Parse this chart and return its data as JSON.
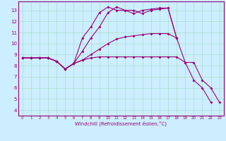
{
  "xlabel": "Windchill (Refroidissement éolien,°C)",
  "bg_color": "#cceeff",
  "grid_color": "#aaddcc",
  "line_color": "#990077",
  "xlim": [
    -0.5,
    23.5
  ],
  "ylim": [
    3.5,
    13.8
  ],
  "xticks": [
    0,
    1,
    2,
    3,
    4,
    5,
    6,
    7,
    8,
    9,
    10,
    11,
    12,
    13,
    14,
    15,
    16,
    17,
    18,
    19,
    20,
    21,
    22,
    23
  ],
  "yticks": [
    4,
    5,
    6,
    7,
    8,
    9,
    10,
    11,
    12,
    13
  ],
  "series": [
    {
      "x": [
        0,
        1,
        2,
        3,
        4,
        5,
        6,
        7,
        8,
        9,
        10,
        11,
        12,
        13,
        14,
        15,
        16,
        17,
        18,
        19,
        20,
        21,
        22,
        23
      ],
      "y": [
        8.7,
        8.7,
        8.7,
        8.7,
        8.4,
        7.7,
        8.2,
        8.5,
        8.7,
        8.8,
        8.8,
        8.8,
        8.8,
        8.8,
        8.8,
        8.8,
        8.8,
        8.8,
        8.8,
        8.3,
        8.3,
        6.7,
        6.0,
        4.7
      ]
    },
    {
      "x": [
        0,
        1,
        2,
        3,
        4,
        5,
        6,
        7,
        8,
        9,
        10,
        11,
        12,
        13,
        14,
        15,
        16,
        17,
        18,
        19,
        20,
        21,
        22
      ],
      "y": [
        8.7,
        8.7,
        8.7,
        8.7,
        8.4,
        7.7,
        8.2,
        8.5,
        9.0,
        9.5,
        10.0,
        10.4,
        10.6,
        10.7,
        10.8,
        10.9,
        10.9,
        10.9,
        10.5,
        8.3,
        6.7,
        6.0,
        4.7
      ]
    },
    {
      "x": [
        0,
        1,
        2,
        3,
        4,
        5,
        6,
        7,
        8,
        9,
        10,
        11,
        12,
        13,
        14,
        15,
        16,
        17,
        18
      ],
      "y": [
        8.7,
        8.7,
        8.7,
        8.7,
        8.4,
        7.7,
        8.2,
        9.3,
        10.5,
        11.5,
        12.8,
        13.3,
        13.0,
        13.0,
        12.7,
        13.0,
        13.1,
        13.2,
        10.5
      ]
    },
    {
      "x": [
        0,
        1,
        2,
        3,
        4,
        5,
        6,
        7,
        8,
        9,
        10,
        11,
        12,
        13,
        14,
        15,
        16,
        17,
        18
      ],
      "y": [
        8.7,
        8.7,
        8.7,
        8.7,
        8.4,
        7.7,
        8.2,
        10.5,
        11.5,
        12.8,
        13.3,
        13.0,
        13.0,
        12.7,
        13.0,
        13.1,
        13.2,
        13.2,
        10.5
      ]
    }
  ]
}
